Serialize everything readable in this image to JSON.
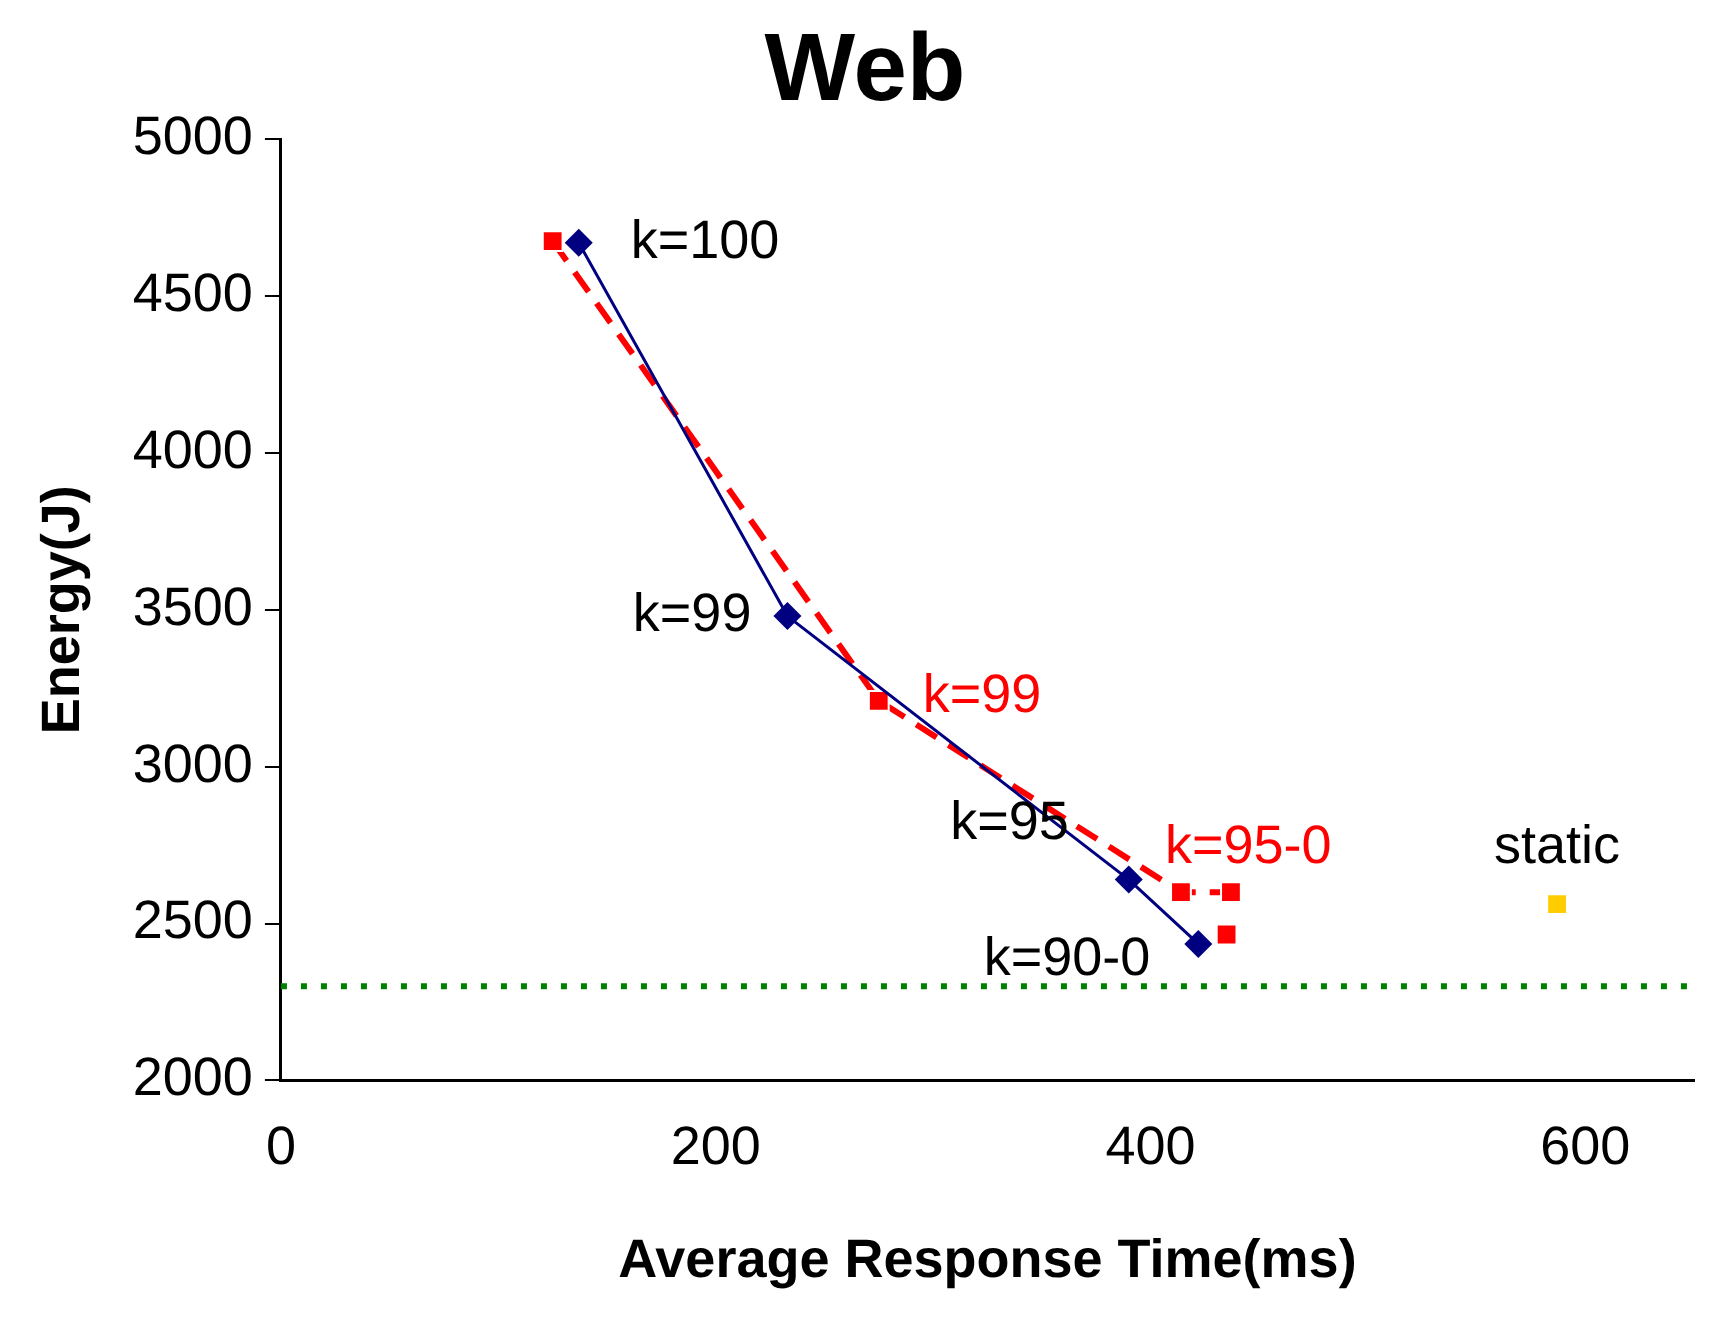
{
  "chart_data": {
    "type": "line",
    "title": "Web",
    "xlabel": "Average Response Time(ms)",
    "ylabel": "Energy(J)",
    "xlim": [
      0,
      650
    ],
    "xticks": [
      0,
      200,
      400,
      600
    ],
    "ylim": [
      2000,
      5000
    ],
    "yticks": [
      2000,
      2500,
      3000,
      3500,
      4000,
      4500,
      5000
    ],
    "grid": false,
    "legend": false,
    "series": [
      {
        "color": "#000080",
        "marker": "diamond",
        "line_style": "solid",
        "x": [
          137,
          233,
          390,
          422
        ],
        "values": [
          4670,
          3480,
          2640,
          2435
        ]
      },
      {
        "color": "#ff0000",
        "marker": "square",
        "line_style": "dashed",
        "x": [
          125,
          275,
          414,
          437
        ],
        "values": [
          4675,
          3210,
          2600,
          2600
        ]
      },
      {
        "type": "scatter",
        "color": "#ff0000",
        "marker": "square",
        "x": [
          435
        ],
        "values": [
          2465
        ]
      },
      {
        "type": "scatter",
        "name": "static",
        "color": "#ffcc00",
        "marker": "square",
        "x": [
          587
        ],
        "values": [
          2562
        ]
      }
    ],
    "ref_lines": [
      {
        "axis": "y",
        "value": 2300,
        "color": "#008000",
        "line_style": "dotted"
      }
    ],
    "annotations": [
      {
        "text": "k=100",
        "x": 137,
        "y": 4670
      },
      {
        "text": "k=99",
        "x": 233,
        "y": 3480
      },
      {
        "text": "k=99",
        "x": 275,
        "y": 3210
      },
      {
        "text": "k=95",
        "x": 390,
        "y": 2640
      },
      {
        "text": "k=90-0",
        "x": 422,
        "y": 2435
      },
      {
        "text": "k=95-0",
        "x": 414,
        "y": 2600
      }
    ]
  }
}
